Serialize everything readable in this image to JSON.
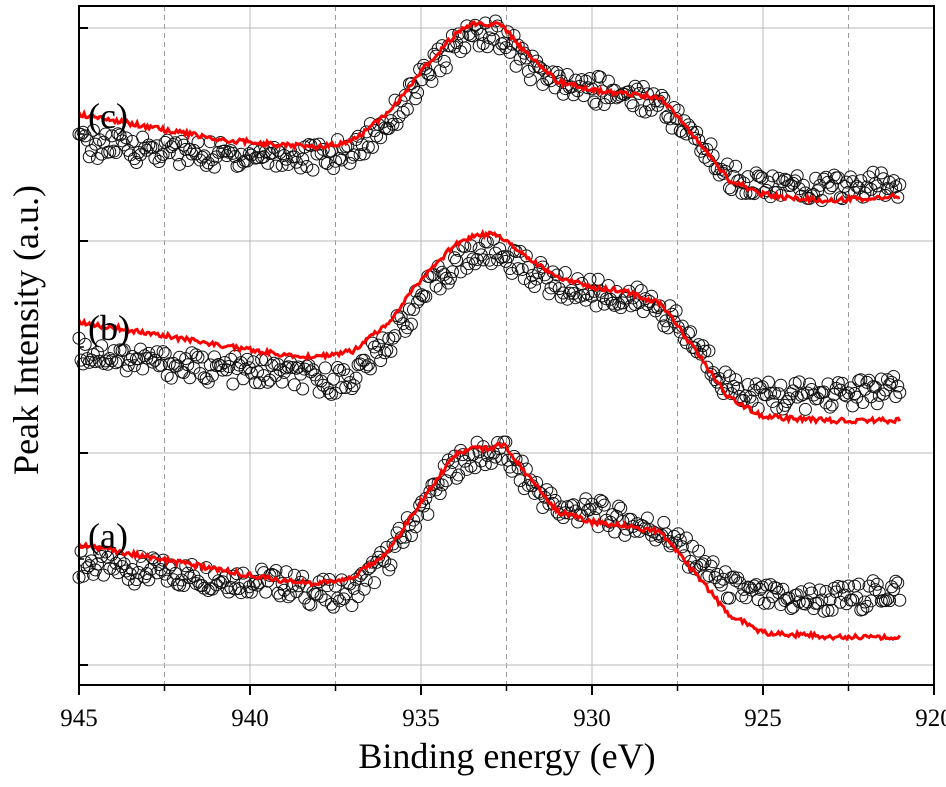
{
  "chart_data": {
    "type": "scatter",
    "xlabel": "Binding energy (eV)",
    "ylabel": "Peak Intensity (a.u.)",
    "xlim": [
      945,
      920
    ],
    "x_reversed": true,
    "x_ticks": [
      945,
      940,
      935,
      930,
      925,
      920
    ],
    "x_minor_gridlines": [
      942.5,
      937.5,
      932.5,
      927.5,
      922.5
    ],
    "grid": true,
    "y_tick_labels_shown": false,
    "series": [
      {
        "label": "(a)",
        "marker": "open-circle",
        "fit_color": "#ff0000",
        "profile_x": [
          945,
          943,
          941,
          939,
          938,
          937,
          936,
          935,
          934,
          933.5,
          933,
          932.6,
          932,
          931,
          930,
          929,
          928,
          927,
          926,
          925,
          924,
          923,
          922,
          921
        ],
        "fit_y": [
          0.49,
          0.43,
          0.37,
          0.31,
          0.3,
          0.33,
          0.45,
          0.7,
          0.93,
          0.96,
          0.96,
          0.98,
          0.85,
          0.65,
          0.6,
          0.58,
          0.55,
          0.35,
          0.15,
          0.06,
          0.05,
          0.04,
          0.04,
          0.04
        ],
        "data_y": [
          0.4,
          0.36,
          0.33,
          0.3,
          0.25,
          0.26,
          0.42,
          0.66,
          0.88,
          0.92,
          0.93,
          0.94,
          0.82,
          0.66,
          0.65,
          0.6,
          0.56,
          0.42,
          0.28,
          0.23,
          0.22,
          0.22,
          0.24,
          0.27
        ]
      },
      {
        "label": "(b)",
        "marker": "open-circle",
        "fit_color": "#ff0000",
        "profile_x": [
          945,
          943,
          941,
          939,
          938,
          937,
          936,
          935,
          934,
          933.5,
          933,
          932.6,
          932,
          931,
          930,
          929,
          928,
          927,
          926,
          925,
          924,
          923,
          922,
          921
        ],
        "fit_y": [
          0.55,
          0.5,
          0.44,
          0.39,
          0.38,
          0.41,
          0.54,
          0.76,
          0.93,
          0.97,
          0.98,
          0.96,
          0.88,
          0.77,
          0.72,
          0.7,
          0.64,
          0.42,
          0.18,
          0.09,
          0.08,
          0.07,
          0.07,
          0.07
        ],
        "data_y": [
          0.41,
          0.36,
          0.32,
          0.3,
          0.26,
          0.28,
          0.45,
          0.67,
          0.84,
          0.88,
          0.89,
          0.88,
          0.82,
          0.73,
          0.7,
          0.67,
          0.62,
          0.44,
          0.24,
          0.19,
          0.19,
          0.2,
          0.21,
          0.22
        ]
      },
      {
        "label": "(c)",
        "marker": "open-circle",
        "fit_color": "#ff0000",
        "profile_x": [
          945,
          943,
          941,
          939,
          938,
          937,
          936,
          935,
          934,
          933.5,
          933,
          932.6,
          932,
          931,
          930,
          929,
          928,
          927,
          926,
          925,
          924,
          923,
          922,
          921
        ],
        "fit_y": [
          0.54,
          0.48,
          0.42,
          0.39,
          0.38,
          0.41,
          0.54,
          0.75,
          0.93,
          0.98,
          0.98,
          0.97,
          0.85,
          0.7,
          0.66,
          0.64,
          0.62,
          0.43,
          0.22,
          0.15,
          0.13,
          0.12,
          0.13,
          0.14
        ],
        "data_y": [
          0.4,
          0.37,
          0.34,
          0.34,
          0.33,
          0.36,
          0.5,
          0.7,
          0.88,
          0.93,
          0.94,
          0.92,
          0.8,
          0.68,
          0.66,
          0.64,
          0.6,
          0.42,
          0.24,
          0.19,
          0.18,
          0.18,
          0.19,
          0.2
        ]
      }
    ]
  }
}
